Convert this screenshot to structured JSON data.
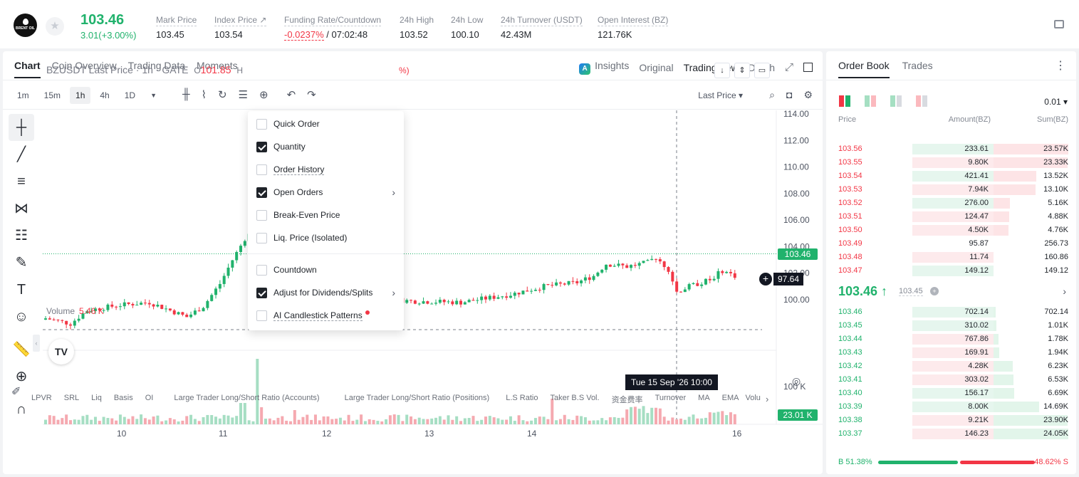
{
  "header": {
    "logo_text": "BRENT OIL",
    "last_price": "103.46",
    "change": "3.01(+3.00%)",
    "stats": [
      {
        "label": "Mark Price",
        "value": "103.45"
      },
      {
        "label": "Index Price ↗",
        "value": "103.54"
      },
      {
        "label": "Funding Rate/Countdown",
        "value_neg": "-0.0237%",
        "value": " / 07:02:48"
      },
      {
        "label": "24h High",
        "value": "103.52"
      },
      {
        "label": "24h Low",
        "value": "100.10"
      },
      {
        "label": "24h Turnover (USDT)",
        "value": "42.43M"
      },
      {
        "label": "Open Interest (BZ)",
        "value": "121.76K"
      }
    ]
  },
  "chart_tabs": [
    "Chart",
    "Coin Overview",
    "Trading Data",
    "Moments"
  ],
  "view_tabs": {
    "insights": "Insights",
    "original": "Original",
    "tradingview": "TradingView",
    "depth": "Depth"
  },
  "intervals": [
    "1m",
    "15m",
    "1h",
    "4h",
    "1D"
  ],
  "price_select": "Last Price ▾",
  "chart_title": {
    "symbol": "BZUSDT Last Price · 1h · GATE",
    "o_label": "O",
    "o_value": "101.85",
    "h_label": "H",
    "tail": "%)"
  },
  "volume_label": {
    "label": "Volume",
    "value": "5.46 K"
  },
  "axis": {
    "price_ticks": [
      "114.00",
      "112.00",
      "110.00",
      "108.00",
      "106.00",
      "104.00",
      "102.00",
      "100.00"
    ],
    "volume_tick": "100 K",
    "current_price": "103.46",
    "crosshair_price": "97.64",
    "volume_value": "23.01 K",
    "time_ticks": [
      "10",
      "11",
      "12",
      "13",
      "14",
      "16"
    ],
    "crosshair_time": "Tue 15 Sep '26   10:00"
  },
  "dropdown": [
    {
      "label": "Quick Order",
      "checked": false
    },
    {
      "label": "Quantity",
      "checked": true
    },
    {
      "label": "Order History",
      "checked": false,
      "underline": true
    },
    {
      "label": "Open Orders",
      "checked": true,
      "arrow": true
    },
    {
      "label": "Break-Even Price",
      "checked": false
    },
    {
      "label": "Liq. Price (Isolated)",
      "checked": false
    },
    {
      "label": "Countdown",
      "checked": false
    },
    {
      "label": "Adjust for Dividends/Splits",
      "checked": true,
      "arrow": true
    },
    {
      "label": "AI Candlestick Patterns",
      "checked": false,
      "underline": true,
      "dot": true
    }
  ],
  "indicators": [
    "LPVR",
    "SRL",
    "Liq",
    "Basis",
    "OI",
    "Large Trader Long/Short Ratio (Accounts)",
    "Large Trader Long/Short Ratio (Positions)",
    "L.S Ratio",
    "Taker B.S Vol.",
    "资金费率",
    "Turnover",
    "MA",
    "EMA",
    "Volu"
  ],
  "orderbook": {
    "tabs": [
      "Order Book",
      "Trades"
    ],
    "precision": "0.01 ▾",
    "headers": {
      "price": "Price",
      "amount": "Amount(BZ)",
      "sum": "Sum(BZ)"
    },
    "asks": [
      {
        "price": "103.56",
        "amount": "233.61",
        "sum": "23.57K",
        "abar": 1.0,
        "sbar": 1.0,
        "acol": "g"
      },
      {
        "price": "103.55",
        "amount": "9.80K",
        "sum": "23.33K",
        "abar": 1.0,
        "sbar": 0.99,
        "acol": "r"
      },
      {
        "price": "103.54",
        "amount": "421.41",
        "sum": "13.52K",
        "abar": 1.0,
        "sbar": 0.57,
        "acol": "g"
      },
      {
        "price": "103.53",
        "amount": "7.94K",
        "sum": "13.10K",
        "abar": 1.0,
        "sbar": 0.56,
        "acol": "r"
      },
      {
        "price": "103.52",
        "amount": "276.00",
        "sum": "5.16K",
        "abar": 1.0,
        "sbar": 0.22,
        "acol": "g"
      },
      {
        "price": "103.51",
        "amount": "124.47",
        "sum": "4.88K",
        "abar": 1.0,
        "sbar": 0.21,
        "acol": "r"
      },
      {
        "price": "103.50",
        "amount": "4.50K",
        "sum": "4.76K",
        "abar": 1.0,
        "sbar": 0.2,
        "acol": "r"
      },
      {
        "price": "103.49",
        "amount": "95.87",
        "sum": "256.73",
        "abar": 0.0,
        "sbar": 0.0,
        "acol": "r"
      },
      {
        "price": "103.48",
        "amount": "11.74",
        "sum": "160.86",
        "abar": 1.0,
        "sbar": 0.0,
        "acol": "r"
      },
      {
        "price": "103.47",
        "amount": "149.12",
        "sum": "149.12",
        "abar": 1.0,
        "sbar": 0.0,
        "acol": "g"
      }
    ],
    "mid_price": "103.46 ↑",
    "mark_price": "103.45",
    "bids": [
      {
        "price": "103.46",
        "amount": "702.14",
        "sum": "702.14",
        "abar": 1.0,
        "sbar": 0.03,
        "acol": "g"
      },
      {
        "price": "103.45",
        "amount": "310.02",
        "sum": "1.01K",
        "abar": 1.0,
        "sbar": 0.04,
        "acol": "g"
      },
      {
        "price": "103.44",
        "amount": "767.86",
        "sum": "1.78K",
        "abar": 1.0,
        "sbar": 0.07,
        "acol": "r"
      },
      {
        "price": "103.43",
        "amount": "169.91",
        "sum": "1.94K",
        "abar": 1.0,
        "sbar": 0.08,
        "acol": "r"
      },
      {
        "price": "103.42",
        "amount": "4.28K",
        "sum": "6.23K",
        "abar": 1.0,
        "sbar": 0.26,
        "acol": "r"
      },
      {
        "price": "103.41",
        "amount": "303.02",
        "sum": "6.53K",
        "abar": 1.0,
        "sbar": 0.27,
        "acol": "r"
      },
      {
        "price": "103.40",
        "amount": "156.17",
        "sum": "6.69K",
        "abar": 1.0,
        "sbar": 0.28,
        "acol": "g"
      },
      {
        "price": "103.39",
        "amount": "8.00K",
        "sum": "14.69K",
        "abar": 1.0,
        "sbar": 0.61,
        "acol": "g"
      },
      {
        "price": "103.38",
        "amount": "9.21K",
        "sum": "23.90K",
        "abar": 1.0,
        "sbar": 0.99,
        "acol": "r"
      },
      {
        "price": "103.37",
        "amount": "146.23",
        "sum": "24.05K",
        "abar": 1.0,
        "sbar": 1.0,
        "acol": "r"
      }
    ],
    "buy_ratio": "B 51.38%",
    "sell_ratio": "48.62% S"
  },
  "colors": {
    "up": "#20b26c",
    "down": "#f23645"
  }
}
